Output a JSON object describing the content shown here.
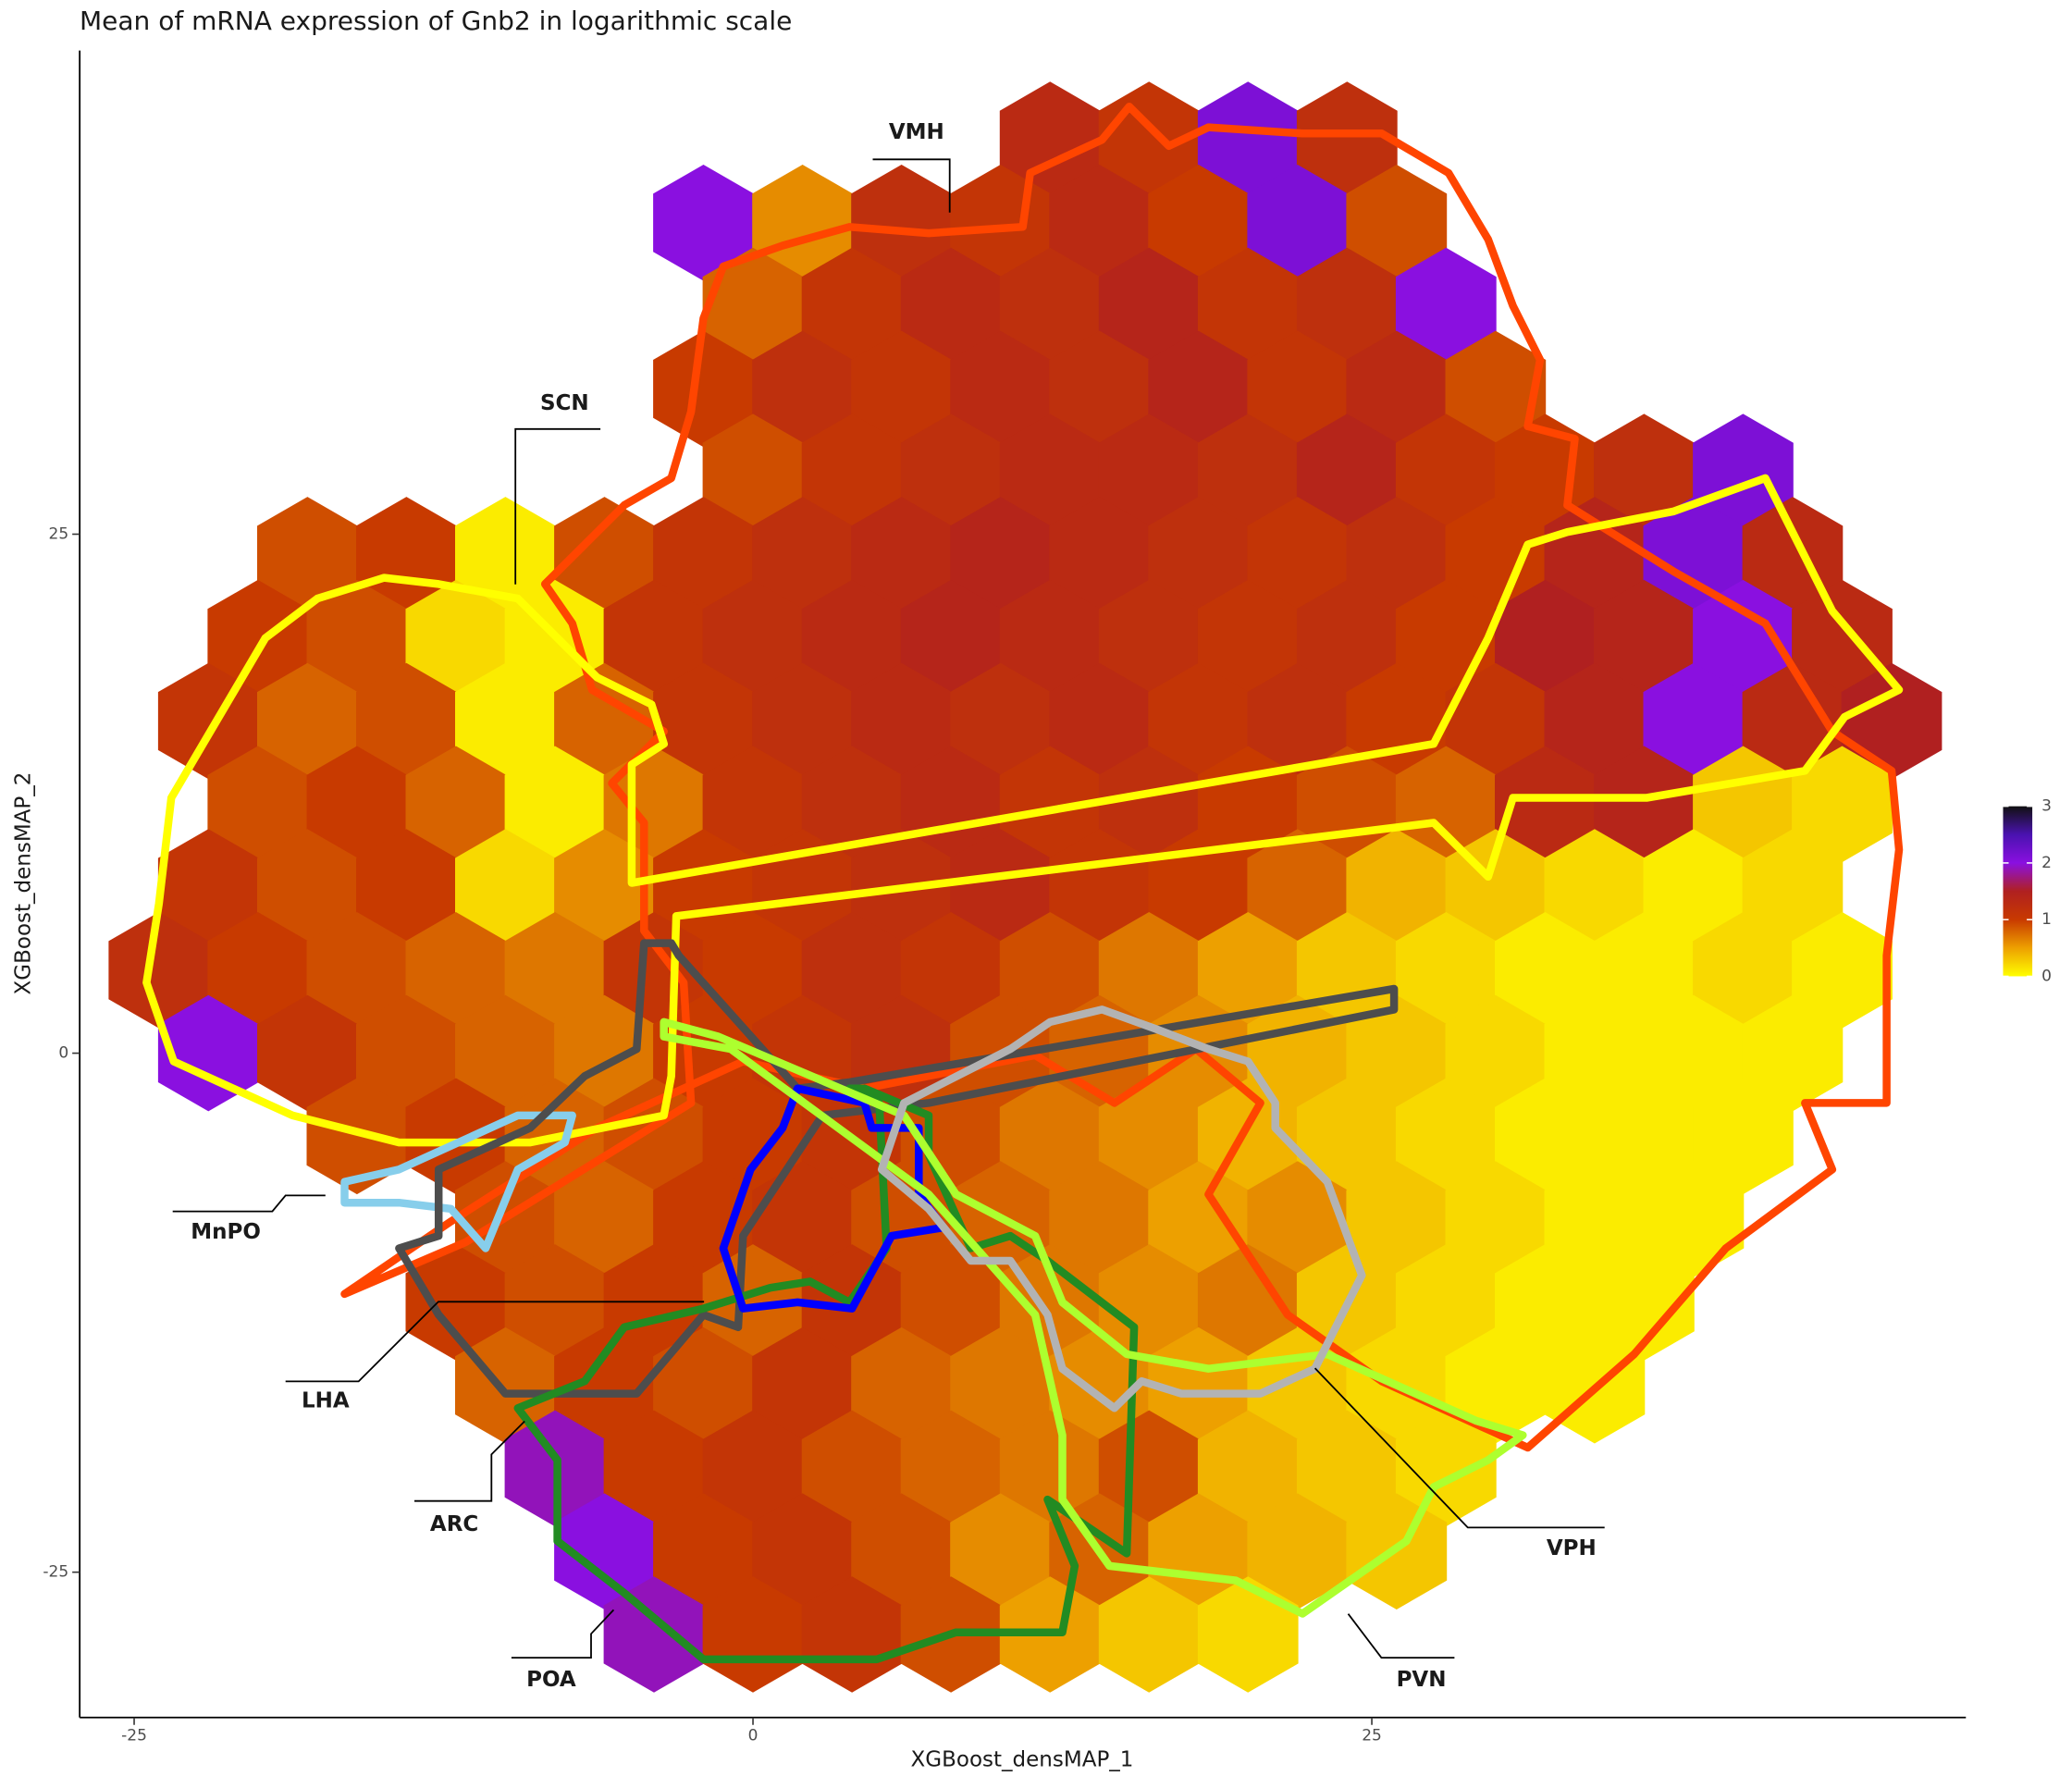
{
  "chart_data": {
    "type": "hexbin",
    "title": "Mean of mRNA expression of Gnb2 in logarithmic scale",
    "x_label": "XGBoost_densMAP_1",
    "y_label": "XGBoost_densMAP_2",
    "xlim": [
      -27.2,
      49
    ],
    "ylim": [
      -32,
      48.3
    ],
    "xticks": [
      -25,
      0,
      25
    ],
    "yticks": [
      -25,
      0,
      25
    ],
    "hexbins": [
      {
        "y": 44,
        "x": [
          12,
          16,
          20,
          24
        ],
        "values": [
          1.3,
          1.1,
          2.1,
          1.2
        ]
      },
      {
        "y": 40,
        "x": [
          -2,
          2,
          6,
          10,
          14,
          18,
          22,
          26
        ],
        "values": [
          2.0,
          0.6,
          1.2,
          1.1,
          1.3,
          1.0,
          2.1,
          0.9
        ]
      },
      {
        "y": 36,
        "x": [
          0,
          4,
          8,
          12,
          16,
          20,
          24,
          28
        ],
        "values": [
          0.8,
          1.1,
          1.3,
          1.2,
          1.4,
          1.1,
          1.2,
          2.0
        ]
      },
      {
        "y": 32,
        "x": [
          -2,
          2,
          6,
          10,
          14,
          18,
          22,
          26,
          30
        ],
        "values": [
          1.0,
          1.2,
          1.1,
          1.3,
          1.2,
          1.4,
          1.1,
          1.3,
          0.9
        ]
      },
      {
        "y": 28,
        "x": [
          0,
          4,
          8,
          12,
          16,
          20,
          24,
          28,
          32,
          36,
          40
        ],
        "values": [
          0.9,
          1.1,
          1.2,
          1.3,
          1.3,
          1.2,
          1.4,
          1.1,
          1.0,
          1.2,
          2.1
        ]
      },
      {
        "y": 24,
        "x": [
          -18,
          -14,
          -10,
          -6,
          -2,
          2,
          6,
          10,
          14,
          18,
          22,
          26,
          30,
          34,
          38,
          42
        ],
        "values": [
          0.9,
          1.0,
          0.1,
          0.9,
          1.1,
          1.2,
          1.3,
          1.4,
          1.3,
          1.2,
          1.1,
          1.2,
          1.0,
          1.4,
          2.1,
          1.3
        ]
      },
      {
        "y": 20,
        "x": [
          -20,
          -16,
          -12,
          -8,
          -4,
          0,
          4,
          8,
          12,
          16,
          20,
          24,
          28,
          32,
          36,
          40,
          44
        ],
        "values": [
          1.0,
          0.9,
          0.2,
          0.1,
          1.1,
          1.2,
          1.3,
          1.4,
          1.3,
          1.2,
          1.1,
          1.2,
          1.0,
          1.5,
          1.4,
          2.0,
          1.3
        ]
      },
      {
        "y": 16,
        "x": [
          -22,
          -18,
          -14,
          -10,
          -6,
          -2,
          2,
          6,
          10,
          14,
          18,
          22,
          26,
          30,
          34,
          38,
          42,
          46
        ],
        "values": [
          1.1,
          0.8,
          0.9,
          0.1,
          0.8,
          1.1,
          1.2,
          1.3,
          1.2,
          1.3,
          1.1,
          1.2,
          1.0,
          1.1,
          1.4,
          2.0,
          1.3,
          1.5
        ]
      },
      {
        "y": 12,
        "x": [
          -20,
          -16,
          -12,
          -8,
          -4,
          0,
          4,
          8,
          12,
          16,
          20,
          24,
          28,
          32,
          36,
          40,
          44
        ],
        "values": [
          0.9,
          1.0,
          0.8,
          0.1,
          0.7,
          1.1,
          1.2,
          1.3,
          1.1,
          1.2,
          1.0,
          0.9,
          0.8,
          1.3,
          1.4,
          0.3,
          0.2
        ]
      },
      {
        "y": 8,
        "x": [
          -22,
          -18,
          -14,
          -10,
          -6,
          -2,
          2,
          6,
          10,
          14,
          18,
          22,
          26,
          30,
          34,
          38,
          42
        ],
        "values": [
          1.1,
          0.9,
          1.0,
          0.2,
          0.6,
          1.0,
          1.1,
          1.2,
          1.3,
          1.1,
          1.0,
          0.8,
          0.4,
          0.3,
          0.2,
          0.1,
          0.2
        ]
      },
      {
        "y": 4,
        "x": [
          -24,
          -20,
          -16,
          -12,
          -8,
          -4,
          0,
          4,
          8,
          12,
          16,
          20,
          24,
          28,
          32,
          36,
          40,
          44
        ],
        "values": [
          1.2,
          1.0,
          0.9,
          0.8,
          0.7,
          1.1,
          1.0,
          1.2,
          1.1,
          0.9,
          0.7,
          0.5,
          0.3,
          0.2,
          0.1,
          0.1,
          0.2,
          0.1
        ]
      },
      {
        "y": 0,
        "x": [
          -22,
          -18,
          -14,
          -10,
          -6,
          -2,
          2,
          6,
          10,
          14,
          18,
          22,
          26,
          30,
          34,
          38,
          42
        ],
        "values": [
          2.0,
          1.1,
          0.9,
          0.8,
          0.7,
          1.0,
          1.1,
          1.2,
          0.9,
          0.8,
          0.6,
          0.4,
          0.3,
          0.2,
          0.1,
          0.1,
          0.1
        ]
      },
      {
        "y": -4,
        "x": [
          -16,
          -12,
          -8,
          -4,
          0,
          4,
          8,
          12,
          16,
          20,
          24,
          28,
          32,
          36,
          40
        ],
        "values": [
          0.9,
          1.0,
          0.8,
          0.9,
          1.0,
          1.1,
          0.9,
          0.7,
          0.6,
          0.4,
          0.3,
          0.2,
          0.1,
          0.1,
          0.1
        ]
      },
      {
        "y": -8,
        "x": [
          -10,
          -6,
          -2,
          2,
          6,
          10,
          14,
          18,
          22,
          26,
          30,
          34,
          38
        ],
        "values": [
          0.9,
          0.8,
          1.0,
          1.1,
          0.9,
          0.8,
          0.7,
          0.5,
          0.6,
          0.3,
          0.2,
          0.1,
          0.1
        ]
      },
      {
        "y": -12,
        "x": [
          -12,
          -8,
          -4,
          0,
          4,
          8,
          12,
          16,
          20,
          24,
          28,
          32,
          36
        ],
        "values": [
          1.0,
          0.9,
          1.0,
          0.8,
          1.1,
          0.9,
          0.7,
          0.6,
          0.7,
          0.3,
          0.2,
          0.1,
          0.1
        ]
      },
      {
        "y": -16,
        "x": [
          -10,
          -6,
          -2,
          2,
          6,
          10,
          14,
          18,
          22,
          26,
          30,
          34
        ],
        "values": [
          0.8,
          1.0,
          0.9,
          1.1,
          0.8,
          0.7,
          0.6,
          0.5,
          0.3,
          0.2,
          0.1,
          0.1
        ]
      },
      {
        "y": -20,
        "x": [
          -8,
          -4,
          0,
          4,
          8,
          12,
          16,
          20,
          24,
          28
        ],
        "values": [
          1.9,
          1.0,
          1.1,
          0.9,
          0.8,
          0.7,
          0.9,
          0.4,
          0.3,
          0.2
        ]
      },
      {
        "y": -24,
        "x": [
          -6,
          -2,
          2,
          6,
          10,
          14,
          18,
          22,
          26
        ],
        "values": [
          2.0,
          1.0,
          1.1,
          0.9,
          0.6,
          0.8,
          0.5,
          0.4,
          0.3
        ]
      },
      {
        "y": -28,
        "x": [
          -4,
          0,
          4,
          8,
          12,
          16,
          20
        ],
        "values": [
          1.9,
          1.0,
          1.1,
          0.9,
          0.5,
          0.3,
          0.2
        ]
      }
    ],
    "colorbar": {
      "lim": [
        0,
        3
      ],
      "ticks": [
        0,
        1,
        2,
        3
      ],
      "colors": [
        "#ffff00",
        "#eda000",
        "#c83a00",
        "#b02020",
        "#8a10e0",
        "#4a12b0",
        "#111111"
      ]
    },
    "regions": [
      {
        "name": "VMH",
        "color": "#ff4500",
        "x": [
          -1.2,
          1.2,
          3.9,
          7.1,
          10.9,
          11.2,
          14.1,
          15.2,
          16.8,
          18.4,
          22.2,
          25.4,
          28.1,
          29.7,
          30.7,
          31.8,
          31.3,
          33.2,
          32.9,
          37.2,
          40.9,
          43.6,
          46.0,
          46.3,
          45.8,
          45.8,
          42.5,
          43.6,
          39.3,
          35.6,
          31.3,
          25.4,
          21.6,
          18.4,
          20.5,
          17.9,
          14.6,
          11.4,
          4.5,
          -0.4,
          -6.3,
          -12.2,
          -16.5,
          -11.6,
          -2.5,
          -2.8,
          -4.4,
          -4.4,
          -5.7,
          -3.6,
          -6.5,
          -7.3,
          -8.4,
          -5.2,
          -3.3,
          -2.5,
          -2.0
        ],
        "y": [
          37.9,
          38.9,
          39.8,
          39.5,
          39.8,
          42.4,
          44.0,
          45.6,
          43.7,
          44.6,
          44.3,
          44.3,
          42.4,
          39.2,
          36.0,
          33.4,
          30.2,
          29.6,
          26.4,
          23.2,
          20.7,
          15.5,
          13.6,
          9.8,
          4.7,
          -2.4,
          -2.4,
          -5.6,
          -9.4,
          -14.5,
          -19.0,
          -15.8,
          -12.6,
          -6.8,
          -2.4,
          0.2,
          -2.4,
          -0.1,
          -1.7,
          -0.4,
          -3.6,
          -8.1,
          -11.6,
          -9.1,
          -2.4,
          3.4,
          5.9,
          11.1,
          13.0,
          15.5,
          17.5,
          20.7,
          22.6,
          26.4,
          27.7,
          30.9,
          35.4
        ]
      },
      {
        "name": "SCN",
        "color": "#ffff00",
        "x": [
          -24.0,
          -23.5,
          -19.7,
          -17.6,
          -14.9,
          -12.7,
          -9.5,
          -7.9,
          -6.3,
          -4.1,
          -3.6,
          -4.9,
          -4.9,
          27.5,
          29.7,
          31.3,
          32.9,
          37.2,
          40.9,
          43.6,
          46.3,
          44.1,
          42.5,
          36.1,
          30.7,
          29.7,
          27.5,
          -3.1,
          -3.3,
          -3.6,
          -9.0,
          -14.3,
          -18.6,
          -23.4,
          -24.5
        ],
        "y": [
          7.2,
          12.3,
          20.0,
          21.9,
          22.9,
          22.6,
          21.9,
          20.0,
          18.1,
          16.8,
          14.9,
          13.9,
          8.2,
          14.9,
          20.0,
          24.5,
          25.1,
          26.1,
          27.7,
          21.3,
          17.5,
          16.2,
          13.6,
          12.3,
          12.3,
          8.5,
          11.1,
          6.6,
          -1.1,
          -3.0,
          -4.3,
          -4.3,
          -3.0,
          -0.4,
          3.4
        ]
      },
      {
        "name": "MnPO",
        "color": "#87ceeb",
        "x": [
          -16.5,
          -14.3,
          -9.5,
          -7.3,
          -7.6,
          -9.5,
          -10.8,
          -12.2,
          -14.3,
          -16.5
        ],
        "y": [
          -6.2,
          -5.6,
          -3.0,
          -3.0,
          -4.3,
          -5.6,
          -9.4,
          -7.5,
          -7.2,
          -7.2
        ]
      },
      {
        "name": "LHA",
        "color": "#4d4d4d",
        "x": [
          -3.3,
          -4.4,
          -4.7,
          -6.8,
          -9.0,
          -12.7,
          -12.7,
          -14.3,
          -12.7,
          -10.0,
          -6.8,
          -4.7,
          -2.0,
          -0.6,
          -0.4,
          2.8,
          7.1,
          25.9,
          25.9,
          3.9,
          1.8,
          -3.0
        ],
        "y": [
          5.3,
          5.3,
          0.2,
          -1.1,
          -3.6,
          -5.6,
          -8.8,
          -9.4,
          -12.6,
          -16.4,
          -16.4,
          -16.4,
          -12.6,
          -13.2,
          -8.8,
          -3.0,
          -2.4,
          2.1,
          3.1,
          -1.4,
          -1.7,
          4.7
        ]
      },
      {
        "name": "POA",
        "color": "#228b22",
        "x": [
          3.9,
          5.1,
          5.4,
          3.9,
          2.3,
          0.7,
          -2.0,
          -5.2,
          -6.8,
          -9.5,
          -7.9,
          -7.9,
          -5.2,
          -2.0,
          5.0,
          8.2,
          12.5,
          13.0,
          11.9,
          15.1,
          15.4,
          11.9,
          10.4,
          8.8,
          7.1,
          7.1,
          4.5
        ],
        "y": [
          -1.7,
          -2.4,
          -9.4,
          -12.0,
          -11.0,
          -11.3,
          -12.3,
          -13.2,
          -15.8,
          -17.1,
          -19.6,
          -23.5,
          -26.0,
          -29.2,
          -29.2,
          -27.9,
          -27.9,
          -24.7,
          -21.5,
          -24.1,
          -13.2,
          -10.0,
          -8.8,
          -9.4,
          -4.9,
          -3.0,
          -1.7
        ]
      },
      {
        "name": "ARC",
        "color": "#0000ff",
        "x": [
          1.8,
          4.5,
          4.8,
          6.7,
          6.7,
          7.7,
          5.6,
          4.0,
          1.8,
          -0.4,
          -1.2,
          -0.1,
          1.2
        ],
        "y": [
          -1.7,
          -2.4,
          -3.6,
          -3.6,
          -6.8,
          -8.4,
          -8.8,
          -12.3,
          -12.0,
          -12.3,
          -9.4,
          -5.6,
          -3.6
        ]
      },
      {
        "name": "PVN",
        "color": "#adff2f",
        "x": [
          -3.6,
          -1.4,
          6.1,
          8.2,
          11.4,
          12.5,
          15.1,
          18.4,
          23.2,
          29.2,
          31.1,
          29.7,
          27.5,
          26.4,
          22.2,
          19.5,
          14.4,
          12.5,
          12.5,
          11.4,
          7.1,
          -0.9,
          -3.6
        ],
        "y": [
          1.5,
          0.8,
          -3.0,
          -6.8,
          -8.8,
          -12.0,
          -14.5,
          -15.2,
          -14.5,
          -17.7,
          -18.4,
          -19.6,
          -20.9,
          -23.5,
          -27.0,
          -25.4,
          -24.7,
          -21.5,
          -18.4,
          -12.6,
          -6.8,
          0.2,
          0.8
        ]
      },
      {
        "name": "VPH",
        "color": "#b3b3b3",
        "x": [
          6.1,
          10.4,
          12.0,
          14.1,
          16.2,
          18.4,
          20.0,
          21.1,
          21.1,
          23.2,
          24.6,
          22.7,
          20.5,
          17.3,
          15.7,
          14.6,
          12.5,
          11.9,
          10.4,
          8.8,
          7.1,
          5.2
        ],
        "y": [
          -2.4,
          0.2,
          1.5,
          2.1,
          1.2,
          0.2,
          -0.4,
          -2.4,
          -3.6,
          -6.2,
          -10.7,
          -15.2,
          -16.4,
          -16.4,
          -15.8,
          -17.1,
          -15.2,
          -12.6,
          -10.0,
          -10.0,
          -7.5,
          -5.6
        ]
      }
    ]
  }
}
